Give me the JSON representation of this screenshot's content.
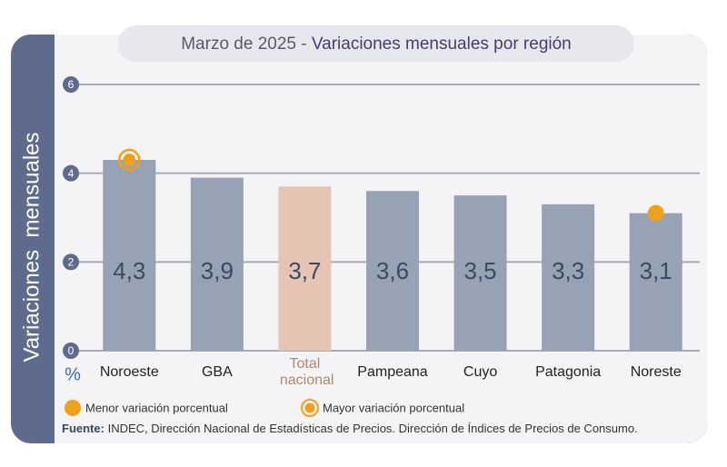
{
  "chart_data": {
    "type": "bar",
    "title_prefix": "Marzo de 2025 -",
    "title": "Variaciones mensuales por región",
    "y_label": "Variaciones  mensuales",
    "y_unit": "%",
    "categories": [
      "Noroeste",
      "GBA",
      "Total nacional",
      "Pampeana",
      "Cuyo",
      "Patagonia",
      "Noreste"
    ],
    "values": [
      4.3,
      3.9,
      3.7,
      3.6,
      3.5,
      3.3,
      3.1
    ],
    "value_labels": [
      "4,3",
      "3,9",
      "3,7",
      "3,6",
      "3,5",
      "3,3",
      "3,1"
    ],
    "colors": [
      "#97a2b5",
      "#97a2b5",
      "#e6c4b3",
      "#97a2b5",
      "#97a2b5",
      "#97a2b5",
      "#97a2b5"
    ],
    "highlight_label_color": "#b0886f",
    "marker_color": "#f0a11a",
    "legend": {
      "min": "Menor variación porcentual",
      "max": "Mayor variación porcentual"
    },
    "ylim": [
      0,
      6
    ],
    "yticks": [
      0,
      2,
      4,
      6
    ],
    "grid": true,
    "source": {
      "label": "Fuente:",
      "text": "INDEC, Dirección Nacional de Estadísticas de Precios. Dirección de Índices de Precios de Consumo."
    }
  }
}
